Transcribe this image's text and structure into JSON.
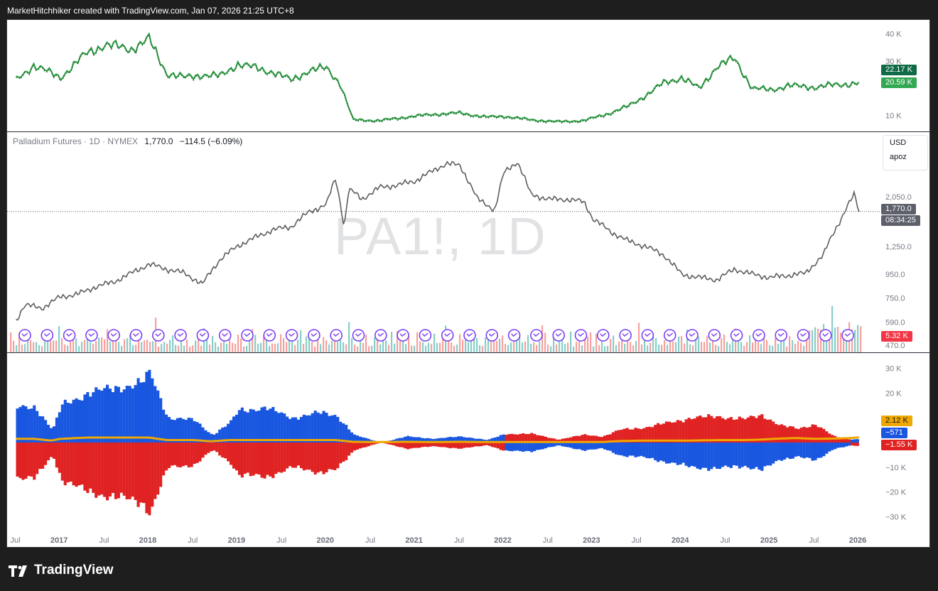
{
  "header": {
    "text": "MarketHitchhiker created with TradingView.com, Jan 07, 2026 21:25 UTC+8"
  },
  "brand": {
    "name": "TradingView"
  },
  "colors": {
    "price_line": "#5d5d5d",
    "oi_line": "#2e9c43",
    "blue": "#1957e0",
    "red": "#e02222",
    "gold": "#f0a800",
    "tag_dark_green": "#0f6b45",
    "tag_green": "#33a852",
    "tag_gray": "#5d606b",
    "tag_red": "#f23645",
    "event_icon": "#7b3ff2"
  },
  "main": {
    "legend": {
      "name": "Palladium Futures · 1D · NYMEX",
      "close": "1,770.0",
      "change": "−114.5 (−6.09%)"
    },
    "watermark": "PA1!, 1D",
    "currency_box": [
      "USD",
      "apoz"
    ],
    "price_tag": "1,770.0",
    "countdown": "08:34:25",
    "volume_tag": "5.32 K"
  },
  "top_pane": {
    "tags": [
      "22.17 K",
      "20.59 K"
    ]
  },
  "bottom_pane": {
    "tags": [
      "2.12 K",
      "−571",
      "−1.55 K"
    ]
  },
  "time_axis": [
    "Jul",
    "2017",
    "Jul",
    "2018",
    "Jul",
    "2019",
    "Jul",
    "2020",
    "Jul",
    "2021",
    "Jul",
    "2022",
    "Jul",
    "2023",
    "Jul",
    "2024",
    "Jul",
    "2025",
    "Jul",
    "2026"
  ],
  "chart_data": [
    {
      "type": "line",
      "pane": "top",
      "series": [
        {
          "name": "",
          "color": "#2e9c43",
          "style": "solid"
        },
        {
          "name": "",
          "color": "#1b6e2f",
          "style": "dotted"
        }
      ],
      "x": [
        2016.5,
        2016.7,
        2017.0,
        2017.3,
        2017.5,
        2017.8,
        2018.0,
        2018.2,
        2018.4,
        2018.6,
        2018.8,
        2019.0,
        2019.2,
        2019.4,
        2019.6,
        2019.8,
        2020.0,
        2020.15,
        2020.3,
        2020.6,
        2020.9,
        2021.2,
        2021.5,
        2021.8,
        2022.0,
        2022.3,
        2022.6,
        2022.9,
        2023.2,
        2023.4,
        2023.6,
        2023.8,
        2024.0,
        2024.2,
        2024.4,
        2024.6,
        2024.8,
        2025.0,
        2025.2,
        2025.5,
        2025.8,
        2026.0
      ],
      "y": [
        23000,
        28500,
        24000,
        33000,
        36000,
        34500,
        38000,
        25500,
        24000,
        25000,
        24500,
        29000,
        27500,
        26000,
        23000,
        26500,
        27500,
        22000,
        8500,
        8200,
        9500,
        10500,
        11000,
        9500,
        9800,
        8500,
        7800,
        8200,
        11000,
        13500,
        17500,
        22000,
        24000,
        20000,
        28000,
        31000,
        20000,
        19500,
        21000,
        20500,
        21500,
        22000
      ],
      "yticks": [
        10000,
        30000,
        40000
      ],
      "ytick_labels": [
        "10 K",
        "30 K",
        "40 K"
      ],
      "ylim": [
        6000,
        43000
      ]
    },
    {
      "type": "line",
      "pane": "main",
      "title": "Palladium Futures · 1D · NYMEX",
      "x": [
        2016.5,
        2016.6,
        2016.8,
        2017.0,
        2017.2,
        2017.4,
        2017.6,
        2017.8,
        2018.0,
        2018.2,
        2018.4,
        2018.6,
        2018.8,
        2019.0,
        2019.2,
        2019.4,
        2019.6,
        2019.8,
        2020.0,
        2020.1,
        2020.2,
        2020.25,
        2020.3,
        2020.4,
        2020.6,
        2020.8,
        2021.0,
        2021.2,
        2021.35,
        2021.5,
        2021.7,
        2021.9,
        2022.0,
        2022.15,
        2022.3,
        2022.5,
        2022.7,
        2022.9,
        2023.0,
        2023.2,
        2023.4,
        2023.6,
        2023.8,
        2024.0,
        2024.2,
        2024.4,
        2024.6,
        2024.8,
        2025.0,
        2025.2,
        2025.4,
        2025.6,
        2025.8,
        2025.95,
        2026.0
      ],
      "y": [
        600,
        700,
        680,
        760,
        780,
        840,
        880,
        960,
        1050,
        1000,
        960,
        860,
        1100,
        1260,
        1370,
        1480,
        1520,
        1760,
        1900,
        2450,
        1500,
        2200,
        2150,
        2000,
        2250,
        2300,
        2400,
        2650,
        2850,
        2800,
        2000,
        1800,
        2600,
        2900,
        2100,
        2000,
        2000,
        1950,
        1650,
        1450,
        1320,
        1250,
        1150,
        950,
        920,
        900,
        1000,
        950,
        920,
        940,
        960,
        1150,
        1650,
        2100,
        1770
      ],
      "yticks": [
        470,
        590,
        750,
        950,
        1250,
        2050
      ],
      "ytick_labels": [
        "470.0",
        "590.0",
        "750.0",
        "950.0",
        "1,250.0",
        "2,050.0"
      ],
      "ylim": [
        470,
        3150
      ],
      "scale": "log",
      "last": 1770.0,
      "volume": {
        "last": 5320,
        "unit": "K"
      }
    },
    {
      "type": "bar",
      "pane": "bottom",
      "series": [
        {
          "name": "",
          "color": "#1957e0"
        },
        {
          "name": "",
          "color": "#e02222"
        },
        {
          "name": "",
          "color": "#f0a800"
        }
      ],
      "x": [
        2016.5,
        2016.7,
        2016.9,
        2017.0,
        2017.3,
        2017.6,
        2017.9,
        2018.0,
        2018.2,
        2018.5,
        2018.7,
        2018.9,
        2019.0,
        2019.3,
        2019.6,
        2019.9,
        2020.1,
        2020.3,
        2020.6,
        2020.9,
        2021.2,
        2021.5,
        2021.8,
        2022.0,
        2022.3,
        2022.6,
        2022.9,
        2023.1,
        2023.3,
        2023.6,
        2023.9,
        2024.1,
        2024.4,
        2024.7,
        2024.9,
        2025.1,
        2025.3,
        2025.5,
        2025.7,
        2025.9,
        2026.0
      ],
      "primary": [
        14000,
        14500,
        5000,
        15000,
        20000,
        22000,
        24000,
        28000,
        10000,
        9000,
        3000,
        8000,
        13000,
        14000,
        10000,
        12000,
        11000,
        3000,
        0,
        2500,
        1500,
        2500,
        1000,
        3500,
        3500,
        1200,
        3200,
        2400,
        5200,
        6200,
        8500,
        10000,
        10500,
        9500,
        11000,
        7000,
        5500,
        7500,
        2500,
        1200,
        1550
      ],
      "primary_sign": [
        1,
        1,
        1,
        1,
        1,
        1,
        1,
        1,
        1,
        1,
        1,
        1,
        1,
        1,
        1,
        1,
        1,
        1,
        0,
        1,
        1,
        1,
        1,
        -1,
        -1,
        -1,
        -1,
        -1,
        -1,
        -1,
        -1,
        -1,
        -1,
        -1,
        -1,
        -1,
        -1,
        -1,
        -1,
        1,
        -1
      ],
      "gold": [
        1500,
        1500,
        800,
        1500,
        2000,
        2000,
        2000,
        2000,
        1000,
        1000,
        500,
        1000,
        1000,
        1000,
        1000,
        1000,
        1000,
        300,
        200,
        300,
        200,
        300,
        200,
        200,
        200,
        200,
        200,
        200,
        600,
        800,
        800,
        800,
        1000,
        1000,
        1200,
        1600,
        1800,
        1500,
        1600,
        1800,
        2120
      ],
      "yticks": [
        -30000,
        -20000,
        -10000,
        20000,
        30000
      ],
      "ytick_labels": [
        "−30 K",
        "−20 K",
        "−10 K",
        "20 K",
        "30 K"
      ],
      "ylim": [
        -33000,
        33000
      ]
    }
  ]
}
